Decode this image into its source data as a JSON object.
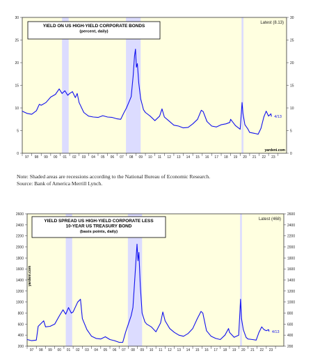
{
  "colors": {
    "plot_background": "#ffffe0",
    "recession_shading": "#dcdcff",
    "series_line": "#1111ee",
    "axis_text": "#222222"
  },
  "note": {
    "line1": "Note: Shaded areas are recessions according to the National Bureau of Economic Research.",
    "line2": "Source: Bank of America Merrill Lynch."
  },
  "chart_data": [
    {
      "type": "line",
      "title": "YIELD ON US HIGH-YIELD CORPORATE BONDS",
      "subtitle": "(percent, daily)",
      "latest_label": "Latest (8.13)",
      "end_label": "4/13",
      "watermark": "yardeni.com",
      "x_range": [
        1997,
        2024.9
      ],
      "ylim": [
        0,
        30
      ],
      "y_ticks": [
        0,
        5,
        10,
        15,
        20,
        25,
        30
      ],
      "x_tick_labels": [
        "97",
        "98",
        "99",
        "00",
        "01",
        "02",
        "03",
        "04",
        "05",
        "06",
        "07",
        "08",
        "09",
        "10",
        "11",
        "12",
        "13",
        "14",
        "15",
        "16",
        "17",
        "18",
        "19",
        "20",
        "21",
        "22",
        "23",
        "24"
      ],
      "recessions": [
        [
          2001.2,
          2001.9
        ],
        [
          2007.95,
          2009.5
        ],
        [
          2020.15,
          2020.35
        ]
      ],
      "series": [
        {
          "x": [
            1997.0,
            1997.5,
            1998.0,
            1998.5,
            1998.8,
            1999.0,
            1999.5,
            2000.0,
            2000.5,
            2000.9,
            2001.2,
            2001.5,
            2001.8,
            2002.0,
            2002.3,
            2002.6,
            2002.8,
            2003.0,
            2003.5,
            2004.0,
            2004.5,
            2005.0,
            2005.5,
            2006.0,
            2006.5,
            2007.0,
            2007.4,
            2007.7,
            2008.0,
            2008.3,
            2008.5,
            2008.7,
            2008.85,
            2008.95,
            2009.05,
            2009.15,
            2009.3,
            2009.5,
            2009.8,
            2010.0,
            2010.5,
            2011.0,
            2011.5,
            2011.75,
            2012.0,
            2012.5,
            2013.0,
            2013.5,
            2014.0,
            2014.5,
            2015.0,
            2015.5,
            2015.9,
            2016.1,
            2016.5,
            2017.0,
            2017.5,
            2018.0,
            2018.5,
            2018.9,
            2019.0,
            2019.5,
            2020.0,
            2020.2,
            2020.3,
            2020.5,
            2020.8,
            2021.0,
            2021.5,
            2021.9,
            2022.2,
            2022.5,
            2022.75,
            2023.0,
            2023.25,
            2023.3
          ],
          "y": [
            9.3,
            8.8,
            8.6,
            9.4,
            10.8,
            10.6,
            11.2,
            12.4,
            13.0,
            14.2,
            13.2,
            13.8,
            12.8,
            13.2,
            13.6,
            12.3,
            13.2,
            11.2,
            9.0,
            8.2,
            8.0,
            7.9,
            8.3,
            8.0,
            7.9,
            7.6,
            7.5,
            8.8,
            10.0,
            11.5,
            12.5,
            17.0,
            21.5,
            23.0,
            19.0,
            19.8,
            15.5,
            12.0,
            9.6,
            9.0,
            8.2,
            7.2,
            8.2,
            9.8,
            8.0,
            7.1,
            6.2,
            6.0,
            5.6,
            5.7,
            6.5,
            7.5,
            9.5,
            9.2,
            7.0,
            6.0,
            5.8,
            6.3,
            6.5,
            6.8,
            7.5,
            6.1,
            5.3,
            11.2,
            8.8,
            6.3,
            5.4,
            4.6,
            4.4,
            4.2,
            5.5,
            8.0,
            9.3,
            8.2,
            8.7,
            8.13
          ]
        }
      ]
    },
    {
      "type": "line",
      "title": "YIELD SPREAD US HIGH-YIELD CORPORATE LESS",
      "title2": "10-YEAR US TREASURY BOND",
      "subtitle": "(basis points, daily)",
      "latest_label": "Latest (468)",
      "end_label": "4/13",
      "watermark": "yardeni.com",
      "x_range": [
        1997,
        2024.9
      ],
      "ylim": [
        200,
        2600
      ],
      "y_ticks": [
        200,
        400,
        600,
        800,
        1000,
        1200,
        1400,
        1600,
        1800,
        2000,
        2200,
        2400,
        2600
      ],
      "x_tick_labels": [
        "97",
        "98",
        "99",
        "00",
        "01",
        "02",
        "03",
        "04",
        "05",
        "06",
        "07",
        "08",
        "09",
        "10",
        "11",
        "12",
        "13",
        "14",
        "15",
        "16",
        "17",
        "18",
        "19",
        "20",
        "21",
        "22",
        "23",
        "24"
      ],
      "recessions": [
        [
          2001.2,
          2001.9
        ],
        [
          2007.95,
          2009.5
        ],
        [
          2020.15,
          2020.35
        ]
      ],
      "series": [
        {
          "x": [
            1997.0,
            1997.5,
            1998.0,
            1998.2,
            1998.8,
            1999.0,
            1999.5,
            2000.0,
            2000.5,
            2000.9,
            2001.2,
            2001.5,
            2001.8,
            2002.0,
            2002.5,
            2002.8,
            2003.0,
            2003.5,
            2004.0,
            2004.5,
            2005.0,
            2005.5,
            2006.0,
            2006.5,
            2007.0,
            2007.4,
            2007.7,
            2008.0,
            2008.3,
            2008.5,
            2008.7,
            2008.85,
            2008.95,
            2009.05,
            2009.15,
            2009.3,
            2009.5,
            2009.8,
            2010.0,
            2010.5,
            2011.0,
            2011.5,
            2011.75,
            2012.0,
            2012.5,
            2013.0,
            2013.5,
            2014.0,
            2014.5,
            2015.0,
            2015.5,
            2015.9,
            2016.1,
            2016.5,
            2017.0,
            2017.5,
            2018.0,
            2018.5,
            2018.9,
            2019.0,
            2019.5,
            2020.0,
            2020.2,
            2020.3,
            2020.5,
            2020.8,
            2021.0,
            2021.5,
            2021.9,
            2022.2,
            2022.5,
            2022.75,
            2023.0,
            2023.25,
            2023.3
          ],
          "y": [
            320,
            300,
            310,
            560,
            660,
            550,
            560,
            600,
            750,
            860,
            780,
            900,
            800,
            820,
            1000,
            1050,
            700,
            500,
            380,
            340,
            330,
            370,
            320,
            300,
            270,
            270,
            450,
            600,
            750,
            900,
            1400,
            1800,
            2050,
            1750,
            1900,
            1300,
            800,
            640,
            600,
            550,
            460,
            620,
            820,
            660,
            520,
            450,
            400,
            380,
            430,
            520,
            700,
            830,
            800,
            480,
            380,
            340,
            320,
            400,
            520,
            450,
            360,
            400,
            1050,
            700,
            500,
            360,
            330,
            320,
            310,
            450,
            550,
            500,
            480,
            500,
            468
          ]
        }
      ]
    }
  ]
}
